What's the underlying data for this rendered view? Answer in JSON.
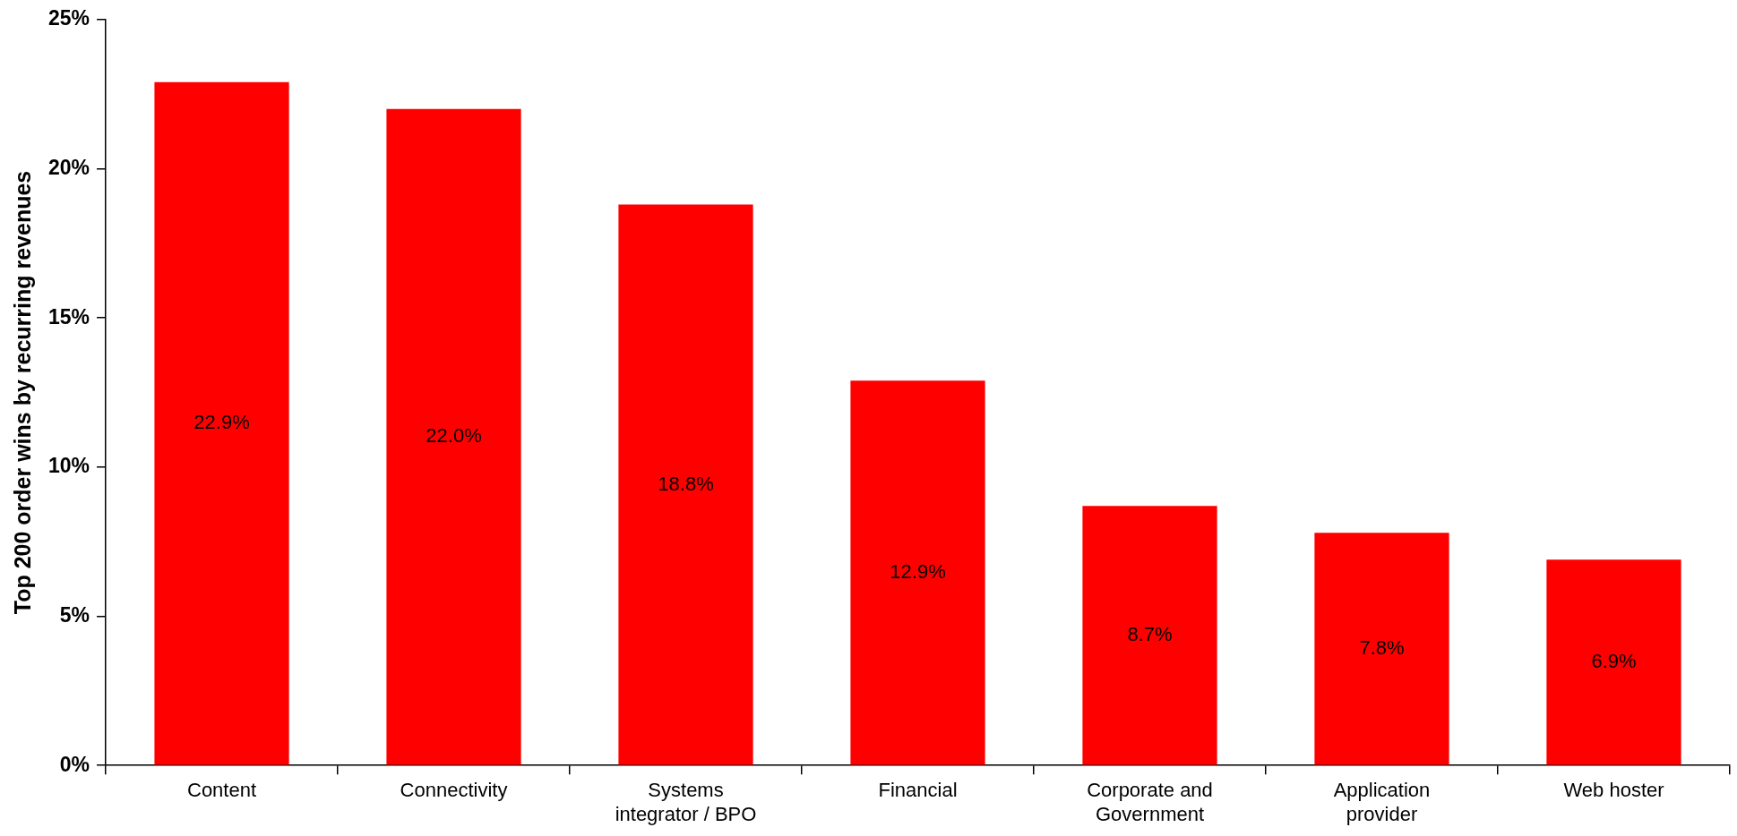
{
  "chart_data": {
    "type": "bar",
    "ylabel": "Top 200 order wins by recurring revenues",
    "categories": [
      "Content",
      "Connectivity",
      "Systems integrator / BPO",
      "Financial",
      "Corporate and Government",
      "Application provider",
      "Web hoster"
    ],
    "values": [
      22.9,
      22.0,
      18.8,
      12.9,
      8.7,
      7.8,
      6.9
    ],
    "value_labels": [
      "22.9%",
      "22.0%",
      "18.8%",
      "12.9%",
      "8.7%",
      "7.8%",
      "6.9%"
    ],
    "color": "#ff0000",
    "ylim": [
      0,
      25
    ],
    "yticks": [
      {
        "value": 0,
        "label": "0%"
      },
      {
        "value": 5,
        "label": "5%"
      },
      {
        "value": 10,
        "label": "10%"
      },
      {
        "value": 15,
        "label": "15%"
      },
      {
        "value": 20,
        "label": "20%"
      },
      {
        "value": 25,
        "label": "25%"
      }
    ],
    "grid": false,
    "legend": false
  }
}
